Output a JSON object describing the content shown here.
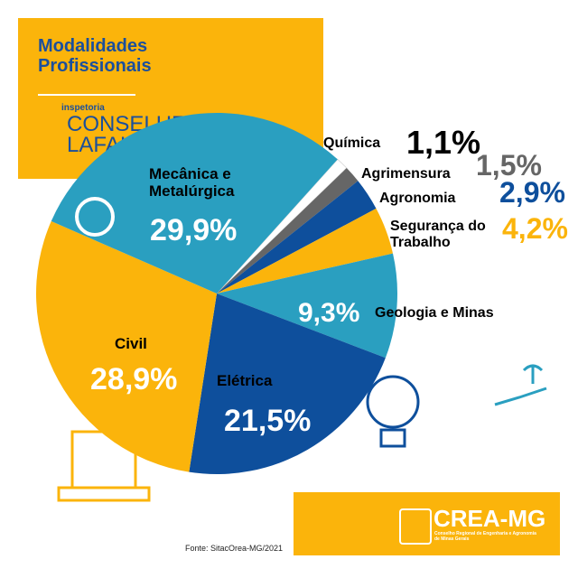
{
  "chart_data": {
    "type": "pie",
    "title": "Modalidades Profissionais",
    "subtitle_small": "inspetoria",
    "subtitle": "CONSELHEIRO LAFAIETE",
    "categories": [
      "Química",
      "Agrimensura",
      "Agronomia",
      "Segurança do Trabalho",
      "Geologia e Minas",
      "Elétrica",
      "Civil",
      "Mecânica e Metalúrgica"
    ],
    "values": [
      1.1,
      1.5,
      2.9,
      4.2,
      9.3,
      21.5,
      28.9,
      29.9
    ],
    "value_labels": [
      "1,1%",
      "1,5%",
      "2,9%",
      "4,2%",
      "9,3%",
      "21,5%",
      "28,9%",
      "29,9%"
    ],
    "colors": [
      "#ffffff",
      "#666666",
      "#0e4f9c",
      "#fbb40b",
      "#2a9fc0",
      "#0e4f9c",
      "#fbb40b",
      "#2a9fc0"
    ],
    "source": "Fonte: SitacOrea-MG/2021",
    "logo": "CREA-MG",
    "logo_caption": "Conselho Regional de Engenharia e Agronomia de Minas Gerais"
  }
}
